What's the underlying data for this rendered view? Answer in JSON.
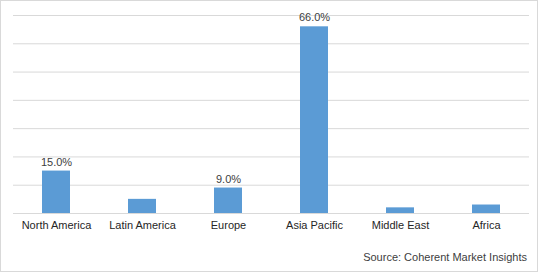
{
  "chart_data": {
    "type": "bar",
    "categories": [
      "North America",
      "Latin America",
      "Europe",
      "Asia Pacific",
      "Middle East",
      "Africa"
    ],
    "values": [
      15.0,
      5,
      9.0,
      66.0,
      2,
      3
    ],
    "value_labels": [
      "15.0%",
      null,
      "9.0%",
      "66.0%",
      null,
      null
    ],
    "color": "#5b9bd5",
    "ylim": [
      0,
      70
    ],
    "yticks": [
      0,
      10,
      20,
      30,
      40,
      50,
      60,
      70
    ],
    "grid": true,
    "data_labels": true,
    "tick_labels": "x",
    "caption": "Source: Coherent Market Insights"
  }
}
